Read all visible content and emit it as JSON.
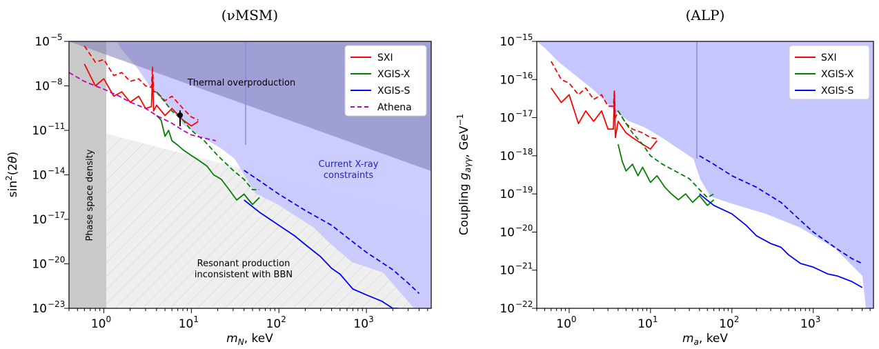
{
  "chart_data": [
    {
      "type": "line",
      "title": "(νMSM)",
      "xlabel": "m_N, keV",
      "ylabel": "sin²(2θ)",
      "xscale": "log",
      "yscale": "log",
      "xlim": [
        0.4,
        5500
      ],
      "ylim": [
        1e-23,
        1e-05
      ],
      "x_ticks": [
        {
          "v": 1,
          "e": "0"
        },
        {
          "v": 10,
          "e": "1"
        },
        {
          "v": 100,
          "e": "2"
        },
        {
          "v": 1000,
          "e": "3"
        }
      ],
      "y_ticks": [
        {
          "v": 1e-05,
          "e": "−5"
        },
        {
          "v": 1e-08,
          "e": "−8"
        },
        {
          "v": 1e-11,
          "e": "−11"
        },
        {
          "v": 1e-14,
          "e": "−14"
        },
        {
          "v": 1e-17,
          "e": "−17"
        },
        {
          "v": 1e-20,
          "e": "−20"
        },
        {
          "v": 1e-23,
          "e": "−23"
        }
      ],
      "annotations": [
        {
          "text": "Thermal overproduction",
          "x": 8,
          "y": 3e-09
        },
        {
          "text": "Current X-ray",
          "x": 1000,
          "y": 5e-14
        },
        {
          "text": "constraints",
          "x": 1000,
          "y": 8e-15
        },
        {
          "text": "Resonant production",
          "x": 80,
          "y": 3e-20
        },
        {
          "text": "inconsistent with BBN",
          "x": 80,
          "y": 5e-21
        },
        {
          "text": "Phase space density",
          "x": 0.75,
          "y": 1e-16
        }
      ],
      "point": {
        "x": 7.1,
        "y": 5e-10,
        "err_low": 2e-10,
        "err_high": 8e-10
      },
      "legend": {
        "placement": "top-right",
        "entries": [
          "SXI",
          "XGIS-X",
          "XGIS-S",
          "Athena"
        ]
      },
      "series": [
        {
          "name": "SXI",
          "color": "#ff0000",
          "style": "solid",
          "x": [
            0.6,
            0.8,
            1.0,
            1.3,
            1.6,
            2.0,
            2.5,
            3.0,
            3.5,
            3.6,
            3.7,
            4.0,
            5.0,
            6.0,
            8.0,
            10.0,
            12.0
          ],
          "y": [
            3e-07,
            1e-08,
            3e-08,
            2e-09,
            4e-09,
            8e-10,
            2e-09,
            3e-10,
            4e-10,
            6e-08,
            2e-10,
            5e-10,
            1e-10,
            3e-10,
            5e-11,
            2e-11,
            4e-11
          ]
        },
        {
          "name": "SXI (dashed)",
          "color": "#ff0000",
          "style": "dashed",
          "x": [
            0.6,
            0.8,
            1.0,
            1.3,
            1.6,
            2.0,
            2.5,
            3.0,
            3.5,
            3.6,
            3.7,
            4.0,
            5.0,
            6.0,
            8.0,
            10.0,
            12.0
          ],
          "y": [
            5e-06,
            4e-07,
            6e-07,
            5e-08,
            8e-08,
            2e-08,
            3e-08,
            1e-08,
            8e-09,
            2e-07,
            4e-09,
            4e-09,
            1e-09,
            2e-09,
            3e-10,
            8e-11,
            5e-11
          ]
        },
        {
          "name": "XGIS-X",
          "color": "#008000",
          "style": "solid",
          "x": [
            4.0,
            4.5,
            5.0,
            5.5,
            6.0,
            7.0,
            8.0,
            10.0,
            12.0,
            15.0,
            18.0,
            22.0,
            27.0,
            33.0,
            40.0,
            50.0,
            60.0
          ],
          "y": [
            1e-10,
            5e-11,
            4e-12,
            1e-11,
            2e-12,
            1e-12,
            5e-13,
            2e-13,
            1e-13,
            4e-14,
            1e-14,
            5e-15,
            1e-15,
            2e-16,
            5e-16,
            1e-16,
            3e-16
          ]
        },
        {
          "name": "XGIS-X (dashed)",
          "color": "#008000",
          "style": "dashed",
          "x": [
            4.0,
            5.0,
            6.0,
            8.0,
            10.0,
            14.0,
            20.0,
            30.0,
            40.0,
            50.0,
            60.0
          ],
          "y": [
            4e-09,
            8e-10,
            2e-10,
            5e-11,
            1e-11,
            2e-12,
            2e-13,
            2e-14,
            5e-15,
            1e-15,
            1e-15
          ]
        },
        {
          "name": "XGIS-S",
          "color": "#0000ff",
          "style": "solid",
          "x": [
            40,
            60,
            100,
            150,
            200,
            300,
            400,
            500,
            700,
            1000,
            1500,
            2000,
            2300
          ],
          "y": [
            2e-16,
            3e-17,
            4e-18,
            8e-19,
            2e-19,
            3e-20,
            5e-21,
            2e-21,
            2e-22,
            8e-23,
            3e-23,
            1e-23,
            1e-23
          ]
        },
        {
          "name": "XGIS-S (dashed)",
          "color": "#0000ff",
          "style": "dashed",
          "x": [
            40,
            60,
            100,
            200,
            400,
            700,
            1000,
            2000,
            3000,
            4000
          ],
          "y": [
            2e-14,
            4e-15,
            5e-16,
            4e-17,
            4e-18,
            3e-19,
            6e-20,
            4e-21,
            5e-22,
            1e-22
          ]
        },
        {
          "name": "Athena",
          "color": "#c000c0",
          "style": "dashed",
          "x": [
            0.4,
            0.6,
            0.8,
            1.0,
            1.5,
            2.0,
            3.0,
            4.0,
            6.0,
            8.0,
            10.0,
            14.0,
            19.0
          ],
          "y": [
            8e-08,
            2e-08,
            1e-08,
            6e-09,
            2e-09,
            8e-10,
            3e-10,
            1e-10,
            3e-11,
            1e-11,
            5e-12,
            3e-12,
            2e-12
          ]
        }
      ]
    },
    {
      "type": "line",
      "title": "(ALP)",
      "xlabel": "m_a, keV",
      "ylabel": "Coupling g_aγγ, GeV⁻¹",
      "xscale": "log",
      "yscale": "log",
      "xlim": [
        0.4,
        5500
      ],
      "ylim": [
        1e-22,
        1e-15
      ],
      "x_ticks": [
        {
          "v": 1,
          "e": "0"
        },
        {
          "v": 10,
          "e": "1"
        },
        {
          "v": 100,
          "e": "2"
        },
        {
          "v": 1000,
          "e": "3"
        }
      ],
      "y_ticks": [
        {
          "v": 1e-15,
          "e": "−15"
        },
        {
          "v": 1e-16,
          "e": "−16"
        },
        {
          "v": 1e-17,
          "e": "−17"
        },
        {
          "v": 1e-18,
          "e": "−18"
        },
        {
          "v": 1e-19,
          "e": "−19"
        },
        {
          "v": 1e-20,
          "e": "−20"
        },
        {
          "v": 1e-21,
          "e": "−21"
        },
        {
          "v": 1e-22,
          "e": "−22"
        }
      ],
      "legend": {
        "placement": "top-right",
        "entries": [
          "SXI",
          "XGIS-X",
          "XGIS-S"
        ]
      },
      "series": [
        {
          "name": "SXI",
          "color": "#ff0000",
          "style": "solid",
          "x": [
            0.6,
            0.8,
            1.0,
            1.3,
            1.6,
            2.0,
            2.5,
            3.0,
            3.5,
            3.6,
            3.7,
            4.0,
            5.0,
            6.0,
            8.0,
            10.0,
            12.0
          ],
          "y": [
            6e-17,
            2.5e-17,
            4e-17,
            7e-18,
            1.5e-17,
            8e-18,
            1.5e-17,
            5e-18,
            5e-18,
            5e-17,
            3e-18,
            8e-18,
            4e-18,
            3e-18,
            2e-18,
            1.5e-18,
            2.5e-18
          ]
        },
        {
          "name": "SXI (dashed)",
          "color": "#ff0000",
          "style": "dashed",
          "x": [
            0.6,
            0.8,
            1.0,
            1.3,
            1.6,
            2.0,
            2.5,
            3.0,
            3.5,
            3.6,
            3.7,
            4.0,
            5.0,
            6.0,
            8.0,
            10.0,
            12.0
          ],
          "y": [
            3e-16,
            1e-16,
            8e-17,
            4e-17,
            6e-17,
            3e-17,
            4e-17,
            2e-17,
            2e-17,
            5e-17,
            1e-17,
            1.5e-17,
            7e-18,
            5e-18,
            4e-18,
            3e-18,
            2.8e-18
          ]
        },
        {
          "name": "XGIS-X",
          "color": "#008000",
          "style": "solid",
          "x": [
            4.0,
            4.5,
            5.0,
            6.0,
            7.0,
            8.0,
            10.0,
            12.0,
            15.0,
            18.0,
            22.0,
            27.0,
            33.0,
            40.0,
            50.0,
            60.0
          ],
          "y": [
            2e-18,
            7e-19,
            4e-19,
            6e-19,
            3e-19,
            5e-19,
            2e-19,
            3e-19,
            1.5e-19,
            1e-19,
            7e-20,
            1e-19,
            6e-20,
            9e-20,
            5e-20,
            7e-20
          ]
        },
        {
          "name": "XGIS-X (dashed)",
          "color": "#008000",
          "style": "dashed",
          "x": [
            4.0,
            5.0,
            6.0,
            8.0,
            10.0,
            14.0,
            20.0,
            30.0,
            40.0,
            50.0,
            60.0
          ],
          "y": [
            1.5e-17,
            7e-18,
            4e-18,
            2e-18,
            1e-18,
            6e-19,
            4e-19,
            2.5e-19,
            1.3e-19,
            8e-20,
            1e-19
          ]
        },
        {
          "name": "XGIS-S",
          "color": "#0000ff",
          "style": "solid",
          "x": [
            40,
            60,
            100,
            150,
            200,
            300,
            400,
            500,
            700,
            1000,
            1500,
            2000,
            3000,
            4000
          ],
          "y": [
            1e-19,
            5e-20,
            3e-20,
            1.5e-20,
            8e-21,
            5e-21,
            4e-21,
            2.5e-21,
            1.5e-21,
            1.2e-21,
            8e-22,
            7e-22,
            5e-22,
            3.5e-22
          ]
        },
        {
          "name": "XGIS-S (dashed)",
          "color": "#0000ff",
          "style": "dashed",
          "x": [
            40,
            60,
            100,
            200,
            400,
            700,
            1000,
            2000,
            3000,
            4000
          ],
          "y": [
            1e-18,
            6e-19,
            3e-19,
            1.5e-19,
            6e-20,
            2e-20,
            1e-20,
            3.5e-21,
            2e-21,
            1.5e-21
          ]
        }
      ]
    }
  ]
}
